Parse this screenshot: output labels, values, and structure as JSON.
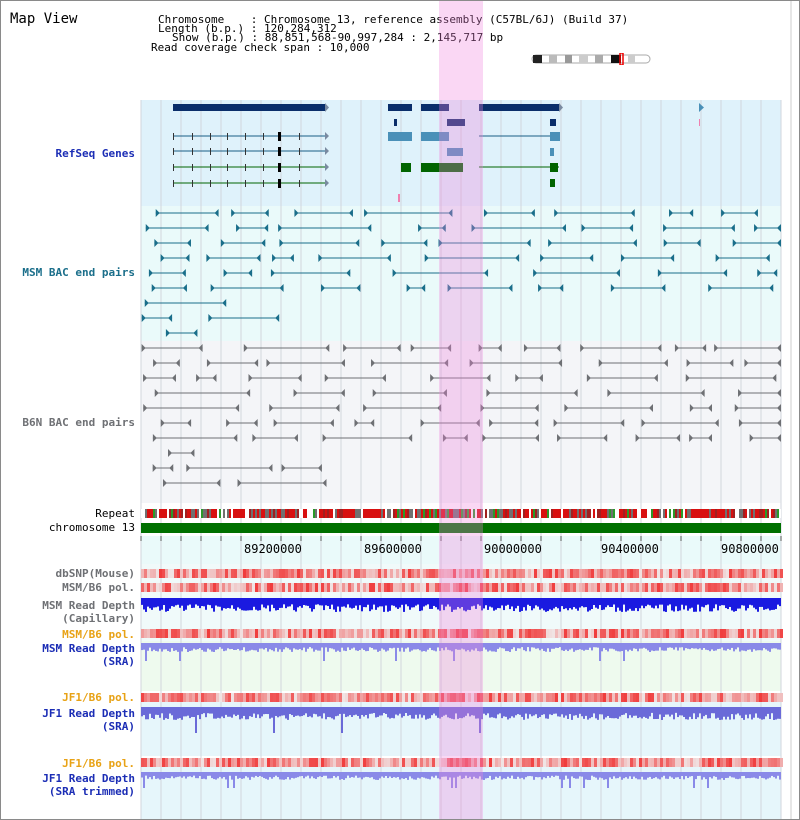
{
  "title": "Map View",
  "info": {
    "chromosome_line": "Chromosome    : Chromosome 13, reference assembly (C57BL/6J) (Build 37)",
    "length_line": "Length (b.p.) : 120,284,312",
    "show_line": "Show (b.p.) : 88,851,568-90,997,284 : 2,145,717 bp",
    "span_line": "Read coverage check span : 10,000"
  },
  "tracks": {
    "refseq": "RefSeq Genes",
    "msm_bac": "MSM BAC end pairs",
    "b6n_bac": "B6N BAC end pairs",
    "repeat": "Repeat",
    "chromosome": "chromosome 13",
    "dbsnp": "dbSNP(Mouse)",
    "msm_b6_pol": "MSM/B6 pol.",
    "msm_read_depth_cap_1": "MSM Read Depth",
    "msm_read_depth_cap_2": "(Capillary)",
    "msm_b6_pol_sra": "MSM/B6 pol.",
    "msm_read_depth_sra_1": "MSM Read Depth",
    "msm_read_depth_sra_2": "(SRA)",
    "jf1_b6_pol": "JF1/B6 pol.",
    "jf1_read_depth_1": "JF1 Read Depth",
    "jf1_read_depth_2": "(SRA)",
    "jf1_b6_pol_trim": "JF1/B6 pol.",
    "jf1_read_depth_trim_1": "JF1 Read Depth",
    "jf1_read_depth_trim_2": "(SRA trimmed)"
  },
  "axis": {
    "ticks": [
      "89200000",
      "89600000",
      "90000000",
      "90400000",
      "90800000"
    ]
  },
  "colors": {
    "refseq_bg": "#dff2fb",
    "msm_bac_bg": "#eafafa",
    "b6n_bac_bg": "#f4f5f8",
    "highlight": "#f4c0ec",
    "label_blue": "#1b2db5",
    "label_teal": "#1a6e8a",
    "label_gray": "#6e7074",
    "label_orange": "#e8a215",
    "gene_navy": "#0a2e6a",
    "gene_steel": "#4a90b8",
    "gene_green": "#006400"
  }
}
